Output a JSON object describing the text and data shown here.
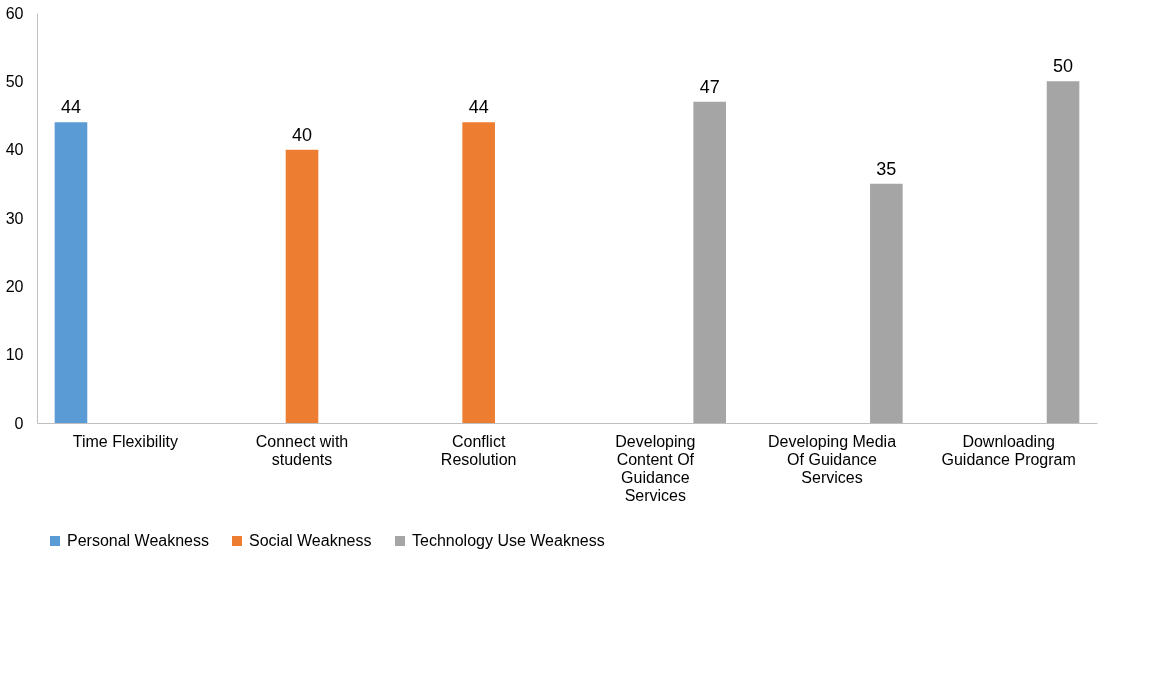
{
  "chart_data": {
    "type": "bar",
    "categories": [
      "Time Flexibility",
      "Connect with students",
      "Conflict Resolution",
      "Developing Content Of Guidance Services",
      "Developing Media Of Guidance Services",
      "Downloading Guidance Program"
    ],
    "series": [
      {
        "name": "Personal Weakness",
        "color": "#5b9bd5",
        "values": [
          44,
          null,
          null,
          null,
          null,
          null
        ]
      },
      {
        "name": "Social Weakness",
        "color": "#ed7d31",
        "values": [
          null,
          40,
          44,
          null,
          null,
          null
        ]
      },
      {
        "name": "Technology Use Weakness",
        "color": "#a5a5a5",
        "values": [
          null,
          null,
          null,
          47,
          35,
          50
        ]
      }
    ],
    "ylim": [
      0,
      60
    ],
    "yticks": [
      0,
      10,
      20,
      30,
      40,
      50,
      60
    ],
    "grid": false,
    "legend": "bottom",
    "data_labels": true
  }
}
